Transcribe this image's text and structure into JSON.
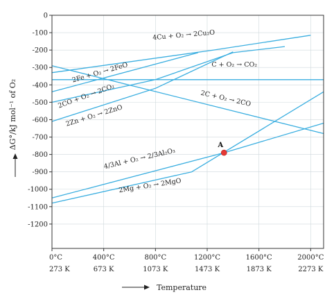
{
  "chart_data": {
    "type": "line",
    "ylabel": "ΔG°/kJ mol⁻¹ of O₂",
    "xlabel": "Temperature",
    "xlim": [
      0,
      2100
    ],
    "ylim": [
      -1340,
      0
    ],
    "y_ticks": [
      0,
      -100,
      -200,
      -300,
      -400,
      -500,
      -600,
      -700,
      -800,
      -900,
      -1000,
      -1100,
      -1200
    ],
    "x_ticks": [
      {
        "x": 0,
        "celsius": "0°C",
        "kelvin": "273 K"
      },
      {
        "x": 400,
        "celsius": "400°C",
        "kelvin": "673 K"
      },
      {
        "x": 800,
        "celsius": "800°C",
        "kelvin": "1073 K"
      },
      {
        "x": 1200,
        "celsius": "1200°C",
        "kelvin": "1473 K"
      },
      {
        "x": 1600,
        "celsius": "1600°C",
        "kelvin": "1873 K"
      },
      {
        "x": 2000,
        "celsius": "2000°C",
        "kelvin": "2273 K"
      }
    ],
    "grid": true,
    "line_color": "#3aaee0",
    "series": [
      {
        "name": "4Cu + O₂ → 2Cu₂O",
        "x": [
          0,
          1250,
          2000
        ],
        "y": [
          -330,
          -200,
          -115
        ]
      },
      {
        "name": "2Fe + O₂ → 2FeO",
        "x": [
          0,
          800,
          1400,
          1800
        ],
        "y": [
          -500,
          -370,
          -215,
          -180
        ]
      },
      {
        "name": "C + O₂ → CO₂",
        "x": [
          0,
          2100
        ],
        "y": [
          -370,
          -370
        ]
      },
      {
        "name": "2CO + O₂ → 2CO₂",
        "x": [
          0,
          1130
        ],
        "y": [
          -440,
          -215
        ]
      },
      {
        "name": "2C + O₂ → 2CO",
        "x": [
          0,
          2100
        ],
        "y": [
          -290,
          -680
        ]
      },
      {
        "name": "2Zn + O₂ → 2ZnO",
        "x": [
          0,
          800,
          1400
        ],
        "y": [
          -610,
          -420,
          -210
        ]
      },
      {
        "name": "4/3Al + O₂ → 2/3Al₂O₃",
        "x": [
          0,
          1330,
          2100
        ],
        "y": [
          -1050,
          -790,
          -620
        ]
      },
      {
        "name": "2Mg + O₂ → 2MgO",
        "x": [
          0,
          1080,
          2100
        ],
        "y": [
          -1080,
          -900,
          -440
        ]
      }
    ],
    "point": {
      "label": "A",
      "x": 1330,
      "y": -790,
      "color": "#e53935"
    },
    "annotations": [
      {
        "text": "4Cu + O₂ → 2Cu₂O",
        "x": 1020,
        "y": -125,
        "angle": -5
      },
      {
        "text": "2Fe + O₂ → 2FeO",
        "x": 375,
        "y": -340,
        "angle": -16
      },
      {
        "text": "C + O₂ → CO₂",
        "x": 1410,
        "y": -295,
        "angle": 0
      },
      {
        "text": "2CO + O₂ → 2CO₂",
        "x": 270,
        "y": -475,
        "angle": -20
      },
      {
        "text": "2C + O₂ → 2CO",
        "x": 1340,
        "y": -490,
        "angle": 13
      },
      {
        "text": "2Zn + O₂ → 2ZnO",
        "x": 330,
        "y": -588,
        "angle": -17
      },
      {
        "text": "4/3Al + O₂ → 2/3Al₂O₃",
        "x": 680,
        "y": -835,
        "angle": -13
      },
      {
        "text": "2Mg + O₂ → 2MgO",
        "x": 760,
        "y": -990,
        "angle": -9
      }
    ]
  }
}
